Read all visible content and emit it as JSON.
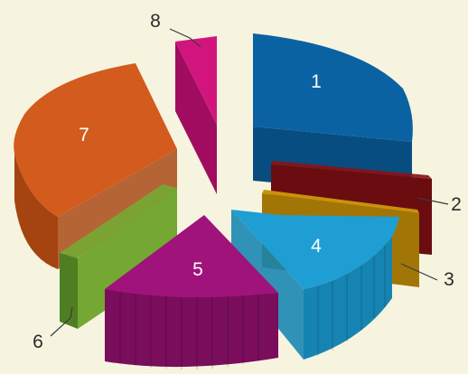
{
  "chart_data": {
    "type": "pie",
    "style": "3d-exploded",
    "title": "",
    "legend": "none",
    "slices": [
      {
        "label": "1",
        "value": 23.5,
        "color": "#0a62a2",
        "side_color": "#084d80",
        "label_position": "inside"
      },
      {
        "label": "2",
        "value": 4.0,
        "color": "#8b1115",
        "side_color": "#6a0c10",
        "label_position": "callout"
      },
      {
        "label": "3",
        "value": 4.0,
        "color": "#c8920a",
        "side_color": "#a27606",
        "label_position": "callout"
      },
      {
        "label": "4",
        "value": 11.0,
        "color": "#1f9ed3",
        "side_color": "#1684b3",
        "label_position": "inside"
      },
      {
        "label": "5",
        "value": 17.0,
        "color": "#a0137a",
        "side_color": "#7a0d5c",
        "label_position": "inside"
      },
      {
        "label": "6",
        "value": 3.5,
        "color": "#74a832",
        "side_color": "#4e7e22",
        "label_position": "callout"
      },
      {
        "label": "7",
        "value": 29.0,
        "color": "#d35b1d",
        "side_color": "#a54410",
        "label_position": "inside"
      },
      {
        "label": "8",
        "value": 2.0,
        "color": "#d2157e",
        "side_color": "#a00d5f",
        "label_position": "callout"
      }
    ]
  }
}
